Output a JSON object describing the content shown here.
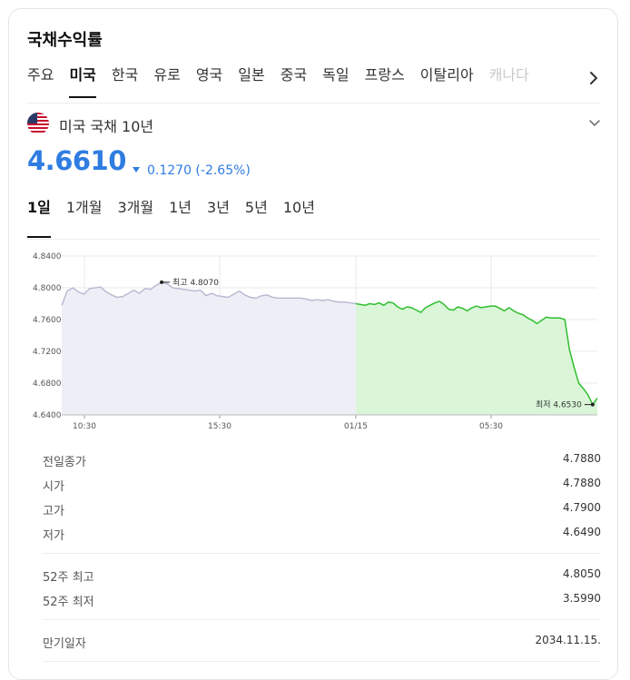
{
  "header": {
    "title": "국채수익률"
  },
  "tabs": [
    {
      "label": "주요"
    },
    {
      "label": "미국"
    },
    {
      "label": "한국"
    },
    {
      "label": "유로"
    },
    {
      "label": "영국"
    },
    {
      "label": "일본"
    },
    {
      "label": "중국"
    },
    {
      "label": "독일"
    },
    {
      "label": "프랑스"
    },
    {
      "label": "이탈리아"
    },
    {
      "label": "캐나다"
    }
  ],
  "active_tab": "미국",
  "bond": {
    "name": "미국 국채 10년",
    "flag_icon": "us-flag-icon",
    "price": "4.6610",
    "change": "0.1270 (-2.65%)",
    "direction": "down",
    "color": "#2f7de1"
  },
  "periods": [
    {
      "label": "1일"
    },
    {
      "label": "1개월"
    },
    {
      "label": "3개월"
    },
    {
      "label": "1년"
    },
    {
      "label": "3년"
    },
    {
      "label": "5년"
    },
    {
      "label": "10년"
    }
  ],
  "active_period": "1일",
  "chart_data": {
    "type": "area",
    "ylim": [
      4.64,
      4.84
    ],
    "yticks": [
      "4.8400",
      "4.8000",
      "4.7600",
      "4.7200",
      "4.6800",
      "4.6400"
    ],
    "xticks": [
      "10:30",
      "15:30",
      "01/15",
      "05:30"
    ],
    "grid": true,
    "series": [
      {
        "segment": "previous-day",
        "fill": "#eeeff6",
        "line": "#b9bbd3",
        "values": [
          4.778,
          4.796,
          4.8,
          4.795,
          4.792,
          4.799,
          4.8,
          4.801,
          4.795,
          4.791,
          4.788,
          4.789,
          4.793,
          4.797,
          4.793,
          4.799,
          4.798,
          4.803,
          4.807,
          4.805,
          4.8,
          4.799,
          4.798,
          4.797,
          4.796,
          4.797,
          4.79,
          4.793,
          4.79,
          4.789,
          4.788,
          4.792,
          4.796,
          4.791,
          4.788,
          4.787,
          4.79,
          4.791,
          4.788,
          4.787,
          4.787,
          4.787,
          4.787,
          4.787,
          4.786,
          4.784,
          4.785,
          4.784,
          4.785,
          4.783,
          4.782,
          4.782,
          4.781,
          4.78
        ]
      },
      {
        "segment": "current-day",
        "fill": "#daf5d8",
        "line": "#2fbf2f",
        "values": [
          4.78,
          4.779,
          4.778,
          4.78,
          4.779,
          4.781,
          4.778,
          4.782,
          4.781,
          4.776,
          4.773,
          4.776,
          4.775,
          4.772,
          4.769,
          4.775,
          4.778,
          4.781,
          4.783,
          4.779,
          4.773,
          4.772,
          4.776,
          4.774,
          4.771,
          4.775,
          4.777,
          4.775,
          4.776,
          4.777,
          4.777,
          4.774,
          4.771,
          4.775,
          4.771,
          4.768,
          4.766,
          4.762,
          4.759,
          4.755,
          4.759,
          4.763,
          4.762,
          4.762,
          4.762,
          4.76,
          4.722,
          4.7,
          4.68,
          4.673,
          4.665,
          4.653,
          4.661
        ]
      }
    ],
    "annotations": [
      {
        "label": "최고 4.8070",
        "value": 4.807
      },
      {
        "label": "최저 4.6530",
        "value": 4.653
      }
    ]
  },
  "stats": {
    "group1": [
      {
        "label": "전일종가",
        "value": "4.7880"
      },
      {
        "label": "시가",
        "value": "4.7880"
      },
      {
        "label": "고가",
        "value": "4.7900"
      },
      {
        "label": "저가",
        "value": "4.6490"
      }
    ],
    "group2": [
      {
        "label": "52주 최고",
        "value": "4.8050"
      },
      {
        "label": "52주 최저",
        "value": "3.5990"
      }
    ],
    "group3": [
      {
        "label": "만기일자",
        "value": "2034.11.15."
      }
    ]
  }
}
